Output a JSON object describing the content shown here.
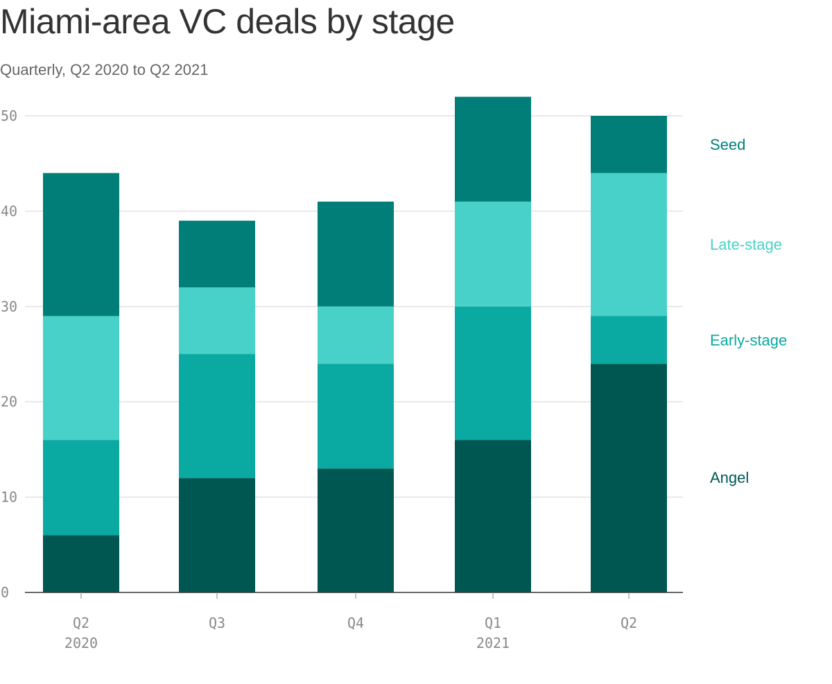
{
  "title": "Miami-area VC deals by stage",
  "subtitle": "Quarterly, Q2 2020 to Q2 2021",
  "chart_data": {
    "type": "bar",
    "stacked": true,
    "categories": [
      "Q2 2020",
      "Q3",
      "Q4",
      "Q1 2021",
      "Q2"
    ],
    "x_tick_labels": [
      {
        "line1": "Q2",
        "line2": "2020"
      },
      {
        "line1": "Q3",
        "line2": ""
      },
      {
        "line1": "Q4",
        "line2": ""
      },
      {
        "line1": "Q1",
        "line2": "2021"
      },
      {
        "line1": "Q2",
        "line2": ""
      }
    ],
    "series": [
      {
        "name": "Angel",
        "color": "#005751",
        "values": [
          6,
          12,
          13,
          16,
          24
        ]
      },
      {
        "name": "Early-stage",
        "color": "#0aa9a1",
        "values": [
          10,
          13,
          11,
          14,
          5
        ]
      },
      {
        "name": "Late-stage",
        "color": "#48d1c8",
        "values": [
          13,
          7,
          6,
          11,
          15
        ]
      },
      {
        "name": "Seed",
        "color": "#007e77",
        "values": [
          15,
          7,
          11,
          11,
          6
        ]
      }
    ],
    "legend_order": [
      "Seed",
      "Late-stage",
      "Early-stage",
      "Angel"
    ],
    "legend_placement": "right",
    "y_ticks": [
      0,
      10,
      20,
      30,
      40,
      50
    ],
    "ylim": [
      0,
      52
    ],
    "grid": true,
    "xlabel": "",
    "ylabel": ""
  }
}
